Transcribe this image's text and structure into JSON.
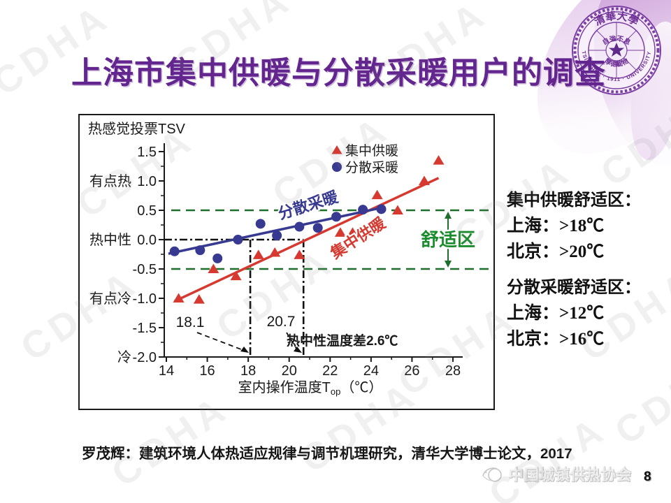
{
  "slide": {
    "title": "上海市集中供暖与分散采暖用户的调查",
    "page_number": "8"
  },
  "watermark": {
    "text": "CDHA"
  },
  "seal": {
    "top_text": "清華大學",
    "bottom_text": "TSINGHUA · 1911 · UNIVERSITY",
    "motto_top": "自強不息",
    "motto_bottom": "厚德載物"
  },
  "chart_data": {
    "type": "scatter",
    "title": "热感觉投票TSV",
    "xlabel_main": "室内操作温度T",
    "xlabel_sub": "op",
    "xlabel_unit": "（℃）",
    "xlim": [
      14,
      28
    ],
    "ylim": [
      -2.0,
      1.5
    ],
    "x_ticks": [
      "14",
      "16",
      "18",
      "20",
      "22",
      "24",
      "26",
      "28"
    ],
    "y_ticks": [
      "1.5",
      "1.0",
      "0.5",
      "0.0",
      "-0.5",
      "-1.0",
      "-1.5",
      "-2.0"
    ],
    "y_category_labels": [
      {
        "value": 1.0,
        "label": "有点热"
      },
      {
        "value": 0.0,
        "label": "热中性"
      },
      {
        "value": -1.0,
        "label": "有点冷"
      },
      {
        "value": -2.0,
        "label": "冷"
      }
    ],
    "series": [
      {
        "name": "集中供暖",
        "marker": "triangle",
        "color": "#d6392f",
        "points": [
          [
            14.6,
            -1.0
          ],
          [
            15.6,
            -1.02
          ],
          [
            16.3,
            -0.5
          ],
          [
            17.4,
            -0.62
          ],
          [
            18.5,
            -0.26
          ],
          [
            19.3,
            -0.22
          ],
          [
            20.5,
            -0.26
          ],
          [
            22.5,
            0.12
          ],
          [
            23.1,
            0.12
          ],
          [
            24.3,
            0.76
          ],
          [
            25.3,
            0.5
          ],
          [
            26.6,
            1.0
          ],
          [
            27.3,
            1.35
          ]
        ],
        "trend": [
          [
            14.4,
            -1.05
          ],
          [
            27.3,
            1.05
          ]
        ],
        "inline_label": {
          "text": "集中供暖",
          "x": 23.5,
          "y": -0.05,
          "angle": -33
        }
      },
      {
        "name": "分散采暖",
        "marker": "circle",
        "color": "#383a92",
        "points": [
          [
            14.4,
            -0.2
          ],
          [
            15.65,
            -0.18
          ],
          [
            16.5,
            -0.32
          ],
          [
            17.5,
            0.0
          ],
          [
            18.6,
            0.27
          ],
          [
            19.4,
            0.07
          ],
          [
            20.5,
            0.22
          ],
          [
            21.4,
            0.2
          ],
          [
            22.3,
            0.39
          ],
          [
            23.6,
            0.51
          ],
          [
            24.5,
            0.52
          ]
        ],
        "trend": [
          [
            14.1,
            -0.24
          ],
          [
            24.6,
            0.55
          ]
        ],
        "inline_label": {
          "text": "分散采暖",
          "x": 21.0,
          "y": 0.5,
          "angle": -17
        }
      }
    ],
    "comfort_zone": {
      "y_top": 0.5,
      "y_bottom": -0.5,
      "label": "舒适区",
      "line_color": "#1d6f2b",
      "label_color": "#1b8c2d"
    },
    "neutral": {
      "t1": 18.1,
      "t2": 20.7,
      "t1_label": "18.1",
      "t2_label": "20.7",
      "note": "热中性温度差2.6℃"
    },
    "legend_position": "top-right-inside",
    "grid": false
  },
  "right_panel": {
    "blocks": [
      {
        "title": "集中供暖舒适区：",
        "line1": "上海：>18℃",
        "line2": "北京：>20℃"
      },
      {
        "title": "分散采暖舒适区：",
        "line1": "上海：>12℃",
        "line2": "北京：>16℃"
      }
    ]
  },
  "citation": "罗茂辉：建筑环境人体热适应规律与调节机理研究，清华大学博士论文，2017",
  "footer": {
    "association": "中国城镇供热协会"
  }
}
